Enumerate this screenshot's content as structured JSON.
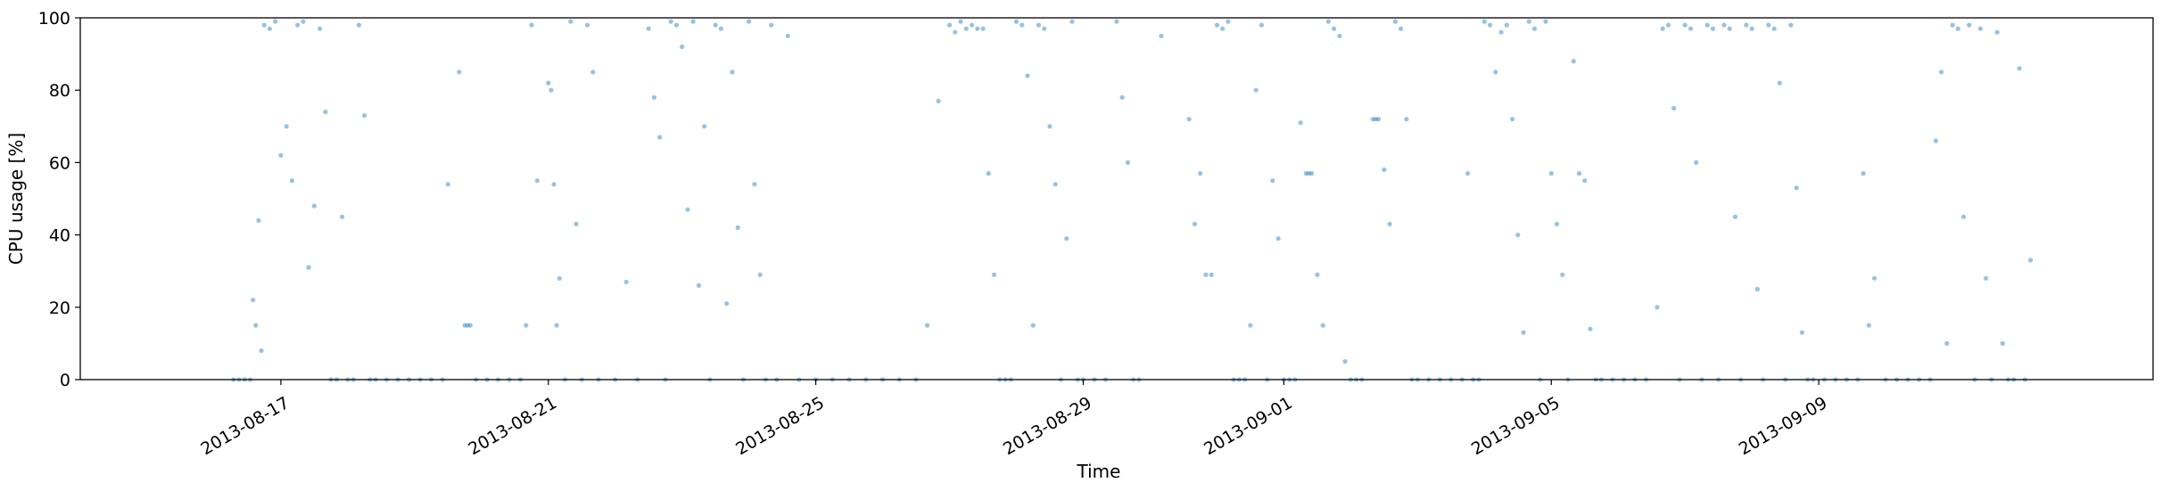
{
  "chart_data": {
    "type": "scatter",
    "xlabel": "Time",
    "ylabel": "CPU usage [%]",
    "xlim": [
      "2013-08-14",
      "2013-09-14"
    ],
    "ylim": [
      0,
      100
    ],
    "yticks": [
      0,
      20,
      40,
      60,
      80,
      100
    ],
    "xticks": [
      "2013-08-17",
      "2013-08-21",
      "2013-08-25",
      "2013-08-29",
      "2013-09-01",
      "2013-09-05",
      "2013-09-09"
    ],
    "grid": false,
    "legend": "none",
    "marker_color": "#1f77b4",
    "marker_alpha": 0.45,
    "series": [
      {
        "points": [
          [
            "2013-08-16T07:00",
            0
          ],
          [
            "2013-08-16T09:00",
            0
          ],
          [
            "2013-08-16T11:00",
            0
          ],
          [
            "2013-08-16T13:00",
            0
          ],
          [
            "2013-08-16T14:00",
            22
          ],
          [
            "2013-08-16T15:00",
            15
          ],
          [
            "2013-08-16T16:00",
            44
          ],
          [
            "2013-08-16T17:00",
            8
          ],
          [
            "2013-08-16T18:00",
            98
          ],
          [
            "2013-08-16T20:00",
            97
          ],
          [
            "2013-08-16T22:00",
            99
          ],
          [
            "2013-08-17T00:00",
            62
          ],
          [
            "2013-08-17T02:00",
            70
          ],
          [
            "2013-08-17T04:00",
            55
          ],
          [
            "2013-08-17T06:00",
            98
          ],
          [
            "2013-08-17T08:00",
            99
          ],
          [
            "2013-08-17T10:00",
            31
          ],
          [
            "2013-08-17T12:00",
            48
          ],
          [
            "2013-08-17T14:00",
            97
          ],
          [
            "2013-08-17T16:00",
            74
          ],
          [
            "2013-08-17T18:00",
            0
          ],
          [
            "2013-08-17T20:00",
            0
          ],
          [
            "2013-08-17T22:00",
            45
          ],
          [
            "2013-08-18T00:00",
            0
          ],
          [
            "2013-08-18T02:00",
            0
          ],
          [
            "2013-08-18T04:00",
            98
          ],
          [
            "2013-08-18T06:00",
            73
          ],
          [
            "2013-08-18T08:00",
            0
          ],
          [
            "2013-08-18T10:00",
            0
          ],
          [
            "2013-08-18T14:00",
            0
          ],
          [
            "2013-08-18T18:00",
            0
          ],
          [
            "2013-08-18T22:00",
            0
          ],
          [
            "2013-08-19T02:00",
            0
          ],
          [
            "2013-08-19T06:00",
            0
          ],
          [
            "2013-08-19T10:00",
            0
          ],
          [
            "2013-08-19T12:00",
            54
          ],
          [
            "2013-08-19T18:00",
            15
          ],
          [
            "2013-08-19T19:00",
            15
          ],
          [
            "2013-08-19T20:00",
            15
          ],
          [
            "2013-08-19T16:00",
            85
          ],
          [
            "2013-08-19T22:00",
            0
          ],
          [
            "2013-08-20T02:00",
            0
          ],
          [
            "2013-08-20T06:00",
            0
          ],
          [
            "2013-08-20T10:00",
            0
          ],
          [
            "2013-08-20T14:00",
            0
          ],
          [
            "2013-08-20T16:00",
            15
          ],
          [
            "2013-08-20T18:00",
            98
          ],
          [
            "2013-08-20T20:00",
            55
          ],
          [
            "2013-08-21T00:00",
            82
          ],
          [
            "2013-08-21T01:00",
            80
          ],
          [
            "2013-08-21T02:00",
            54
          ],
          [
            "2013-08-21T03:00",
            15
          ],
          [
            "2013-08-21T04:00",
            28
          ],
          [
            "2013-08-21T06:00",
            0
          ],
          [
            "2013-08-21T08:00",
            99
          ],
          [
            "2013-08-21T10:00",
            43
          ],
          [
            "2013-08-21T12:00",
            0
          ],
          [
            "2013-08-21T14:00",
            98
          ],
          [
            "2013-08-21T16:00",
            85
          ],
          [
            "2013-08-21T18:00",
            0
          ],
          [
            "2013-08-22T00:00",
            0
          ],
          [
            "2013-08-22T04:00",
            27
          ],
          [
            "2013-08-22T08:00",
            0
          ],
          [
            "2013-08-22T12:00",
            97
          ],
          [
            "2013-08-22T14:00",
            78
          ],
          [
            "2013-08-22T16:00",
            67
          ],
          [
            "2013-08-22T18:00",
            0
          ],
          [
            "2013-08-22T20:00",
            99
          ],
          [
            "2013-08-22T22:00",
            98
          ],
          [
            "2013-08-23T00:00",
            92
          ],
          [
            "2013-08-23T02:00",
            47
          ],
          [
            "2013-08-23T04:00",
            99
          ],
          [
            "2013-08-23T06:00",
            26
          ],
          [
            "2013-08-23T08:00",
            70
          ],
          [
            "2013-08-23T10:00",
            0
          ],
          [
            "2013-08-23T12:00",
            98
          ],
          [
            "2013-08-23T14:00",
            97
          ],
          [
            "2013-08-23T16:00",
            21
          ],
          [
            "2013-08-23T18:00",
            85
          ],
          [
            "2013-08-23T20:00",
            42
          ],
          [
            "2013-08-23T22:00",
            0
          ],
          [
            "2013-08-24T00:00",
            99
          ],
          [
            "2013-08-24T02:00",
            54
          ],
          [
            "2013-08-24T04:00",
            29
          ],
          [
            "2013-08-24T06:00",
            0
          ],
          [
            "2013-08-24T08:00",
            98
          ],
          [
            "2013-08-24T10:00",
            0
          ],
          [
            "2013-08-24T14:00",
            95
          ],
          [
            "2013-08-24T18:00",
            0
          ],
          [
            "2013-08-25T00:00",
            0
          ],
          [
            "2013-08-25T06:00",
            0
          ],
          [
            "2013-08-25T12:00",
            0
          ],
          [
            "2013-08-25T18:00",
            0
          ],
          [
            "2013-08-26T00:00",
            0
          ],
          [
            "2013-08-26T06:00",
            0
          ],
          [
            "2013-08-26T12:00",
            0
          ],
          [
            "2013-08-26T16:00",
            15
          ],
          [
            "2013-08-26T20:00",
            77
          ],
          [
            "2013-08-27T00:00",
            98
          ],
          [
            "2013-08-27T02:00",
            96
          ],
          [
            "2013-08-27T04:00",
            99
          ],
          [
            "2013-08-27T06:00",
            97
          ],
          [
            "2013-08-27T08:00",
            98
          ],
          [
            "2013-08-27T10:00",
            97
          ],
          [
            "2013-08-27T12:00",
            97
          ],
          [
            "2013-08-27T14:00",
            57
          ],
          [
            "2013-08-27T16:00",
            29
          ],
          [
            "2013-08-27T18:00",
            0
          ],
          [
            "2013-08-27T20:00",
            0
          ],
          [
            "2013-08-27T22:00",
            0
          ],
          [
            "2013-08-28T00:00",
            99
          ],
          [
            "2013-08-28T02:00",
            98
          ],
          [
            "2013-08-28T04:00",
            84
          ],
          [
            "2013-08-28T06:00",
            15
          ],
          [
            "2013-08-28T08:00",
            98
          ],
          [
            "2013-08-28T10:00",
            97
          ],
          [
            "2013-08-28T12:00",
            70
          ],
          [
            "2013-08-28T14:00",
            54
          ],
          [
            "2013-08-28T16:00",
            0
          ],
          [
            "2013-08-28T18:00",
            39
          ],
          [
            "2013-08-28T20:00",
            99
          ],
          [
            "2013-08-28T22:00",
            0
          ],
          [
            "2013-08-29T00:00",
            0
          ],
          [
            "2013-08-29T04:00",
            0
          ],
          [
            "2013-08-29T08:00",
            0
          ],
          [
            "2013-08-29T12:00",
            99
          ],
          [
            "2013-08-29T14:00",
            78
          ],
          [
            "2013-08-29T16:00",
            60
          ],
          [
            "2013-08-29T18:00",
            0
          ],
          [
            "2013-08-29T20:00",
            0
          ],
          [
            "2013-08-30T04:00",
            95
          ],
          [
            "2013-08-30T14:00",
            72
          ],
          [
            "2013-08-30T16:00",
            43
          ],
          [
            "2013-08-30T18:00",
            57
          ],
          [
            "2013-08-30T20:00",
            29
          ],
          [
            "2013-08-30T22:00",
            29
          ],
          [
            "2013-08-31T00:00",
            98
          ],
          [
            "2013-08-31T02:00",
            97
          ],
          [
            "2013-08-31T04:00",
            99
          ],
          [
            "2013-08-31T06:00",
            0
          ],
          [
            "2013-08-31T08:00",
            0
          ],
          [
            "2013-08-31T10:00",
            0
          ],
          [
            "2013-08-31T12:00",
            15
          ],
          [
            "2013-08-31T14:00",
            80
          ],
          [
            "2013-08-31T16:00",
            98
          ],
          [
            "2013-08-31T18:00",
            0
          ],
          [
            "2013-08-31T20:00",
            55
          ],
          [
            "2013-08-31T22:00",
            39
          ],
          [
            "2013-09-01T00:00",
            0
          ],
          [
            "2013-09-01T02:00",
            0
          ],
          [
            "2013-09-01T04:00",
            0
          ],
          [
            "2013-09-01T06:00",
            71
          ],
          [
            "2013-09-01T08:00",
            57
          ],
          [
            "2013-09-01T09:00",
            57
          ],
          [
            "2013-09-01T10:00",
            57
          ],
          [
            "2013-09-01T12:00",
            29
          ],
          [
            "2013-09-01T14:00",
            15
          ],
          [
            "2013-09-01T16:00",
            99
          ],
          [
            "2013-09-01T18:00",
            97
          ],
          [
            "2013-09-01T20:00",
            95
          ],
          [
            "2013-09-01T22:00",
            5
          ],
          [
            "2013-09-02T00:00",
            0
          ],
          [
            "2013-09-02T02:00",
            0
          ],
          [
            "2013-09-02T04:00",
            0
          ],
          [
            "2013-09-02T08:00",
            72
          ],
          [
            "2013-09-02T09:00",
            72
          ],
          [
            "2013-09-02T10:00",
            72
          ],
          [
            "2013-09-02T12:00",
            58
          ],
          [
            "2013-09-02T14:00",
            43
          ],
          [
            "2013-09-02T16:00",
            99
          ],
          [
            "2013-09-02T18:00",
            97
          ],
          [
            "2013-09-02T20:00",
            72
          ],
          [
            "2013-09-02T22:00",
            0
          ],
          [
            "2013-09-03T00:00",
            0
          ],
          [
            "2013-09-03T04:00",
            0
          ],
          [
            "2013-09-03T08:00",
            0
          ],
          [
            "2013-09-03T12:00",
            0
          ],
          [
            "2013-09-03T16:00",
            0
          ],
          [
            "2013-09-03T18:00",
            57
          ],
          [
            "2013-09-03T20:00",
            0
          ],
          [
            "2013-09-03T22:00",
            0
          ],
          [
            "2013-09-04T00:00",
            99
          ],
          [
            "2013-09-04T02:00",
            98
          ],
          [
            "2013-09-04T04:00",
            85
          ],
          [
            "2013-09-04T06:00",
            96
          ],
          [
            "2013-09-04T08:00",
            98
          ],
          [
            "2013-09-04T10:00",
            72
          ],
          [
            "2013-09-04T12:00",
            40
          ],
          [
            "2013-09-04T14:00",
            13
          ],
          [
            "2013-09-04T16:00",
            99
          ],
          [
            "2013-09-04T18:00",
            97
          ],
          [
            "2013-09-04T20:00",
            0
          ],
          [
            "2013-09-04T22:00",
            99
          ],
          [
            "2013-09-05T00:00",
            57
          ],
          [
            "2013-09-05T02:00",
            43
          ],
          [
            "2013-09-05T04:00",
            29
          ],
          [
            "2013-09-05T06:00",
            0
          ],
          [
            "2013-09-05T08:00",
            88
          ],
          [
            "2013-09-05T10:00",
            57
          ],
          [
            "2013-09-05T12:00",
            55
          ],
          [
            "2013-09-05T14:00",
            14
          ],
          [
            "2013-09-05T16:00",
            0
          ],
          [
            "2013-09-05T18:00",
            0
          ],
          [
            "2013-09-05T22:00",
            0
          ],
          [
            "2013-09-06T02:00",
            0
          ],
          [
            "2013-09-06T06:00",
            0
          ],
          [
            "2013-09-06T10:00",
            0
          ],
          [
            "2013-09-06T14:00",
            20
          ],
          [
            "2013-09-06T16:00",
            97
          ],
          [
            "2013-09-06T18:00",
            98
          ],
          [
            "2013-09-06T20:00",
            75
          ],
          [
            "2013-09-06T22:00",
            0
          ],
          [
            "2013-09-07T00:00",
            98
          ],
          [
            "2013-09-07T02:00",
            97
          ],
          [
            "2013-09-07T04:00",
            60
          ],
          [
            "2013-09-07T06:00",
            0
          ],
          [
            "2013-09-07T08:00",
            98
          ],
          [
            "2013-09-07T10:00",
            97
          ],
          [
            "2013-09-07T12:00",
            0
          ],
          [
            "2013-09-07T14:00",
            98
          ],
          [
            "2013-09-07T16:00",
            97
          ],
          [
            "2013-09-07T18:00",
            45
          ],
          [
            "2013-09-07T20:00",
            0
          ],
          [
            "2013-09-07T22:00",
            98
          ],
          [
            "2013-09-08T00:00",
            97
          ],
          [
            "2013-09-08T02:00",
            25
          ],
          [
            "2013-09-08T04:00",
            0
          ],
          [
            "2013-09-08T06:00",
            98
          ],
          [
            "2013-09-08T08:00",
            97
          ],
          [
            "2013-09-08T10:00",
            82
          ],
          [
            "2013-09-08T12:00",
            0
          ],
          [
            "2013-09-08T14:00",
            98
          ],
          [
            "2013-09-08T16:00",
            53
          ],
          [
            "2013-09-08T18:00",
            13
          ],
          [
            "2013-09-08T20:00",
            0
          ],
          [
            "2013-09-08T22:00",
            0
          ],
          [
            "2013-09-09T02:00",
            0
          ],
          [
            "2013-09-09T06:00",
            0
          ],
          [
            "2013-09-09T10:00",
            0
          ],
          [
            "2013-09-09T14:00",
            0
          ],
          [
            "2013-09-09T16:00",
            57
          ],
          [
            "2013-09-09T18:00",
            15
          ],
          [
            "2013-09-09T20:00",
            28
          ],
          [
            "2013-09-10T00:00",
            0
          ],
          [
            "2013-09-10T04:00",
            0
          ],
          [
            "2013-09-10T08:00",
            0
          ],
          [
            "2013-09-10T12:00",
            0
          ],
          [
            "2013-09-10T16:00",
            0
          ],
          [
            "2013-09-10T18:00",
            66
          ],
          [
            "2013-09-10T20:00",
            85
          ],
          [
            "2013-09-10T22:00",
            10
          ],
          [
            "2013-09-11T00:00",
            98
          ],
          [
            "2013-09-11T02:00",
            97
          ],
          [
            "2013-09-11T04:00",
            45
          ],
          [
            "2013-09-11T06:00",
            98
          ],
          [
            "2013-09-11T08:00",
            0
          ],
          [
            "2013-09-11T10:00",
            97
          ],
          [
            "2013-09-11T12:00",
            28
          ],
          [
            "2013-09-11T14:00",
            0
          ],
          [
            "2013-09-11T16:00",
            96
          ],
          [
            "2013-09-11T18:00",
            10
          ],
          [
            "2013-09-11T20:00",
            0
          ],
          [
            "2013-09-11T22:00",
            0
          ],
          [
            "2013-09-12T00:00",
            86
          ],
          [
            "2013-09-12T02:00",
            0
          ],
          [
            "2013-09-12T04:00",
            33
          ]
        ]
      }
    ]
  }
}
